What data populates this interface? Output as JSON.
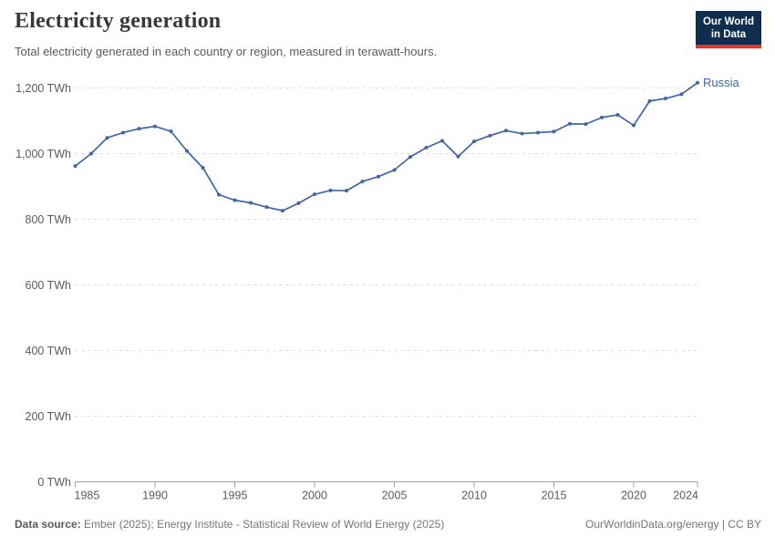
{
  "header": {
    "title": "Electricity generation",
    "subtitle": "Total electricity generated in each country or region, measured in terawatt-hours."
  },
  "logo": {
    "line1": "Our World",
    "line2": "in Data",
    "bg_color": "#0f2d4e",
    "accent_color": "#d93a32"
  },
  "footer": {
    "source_label": "Data source:",
    "source_text": " Ember (2025); Energy Institute - Statistical Review of World Energy (2025)",
    "right_text": "OurWorldinData.org/energy | CC BY"
  },
  "chart_data": {
    "type": "line",
    "title": "Electricity generation",
    "subtitle": "Total electricity generated in each country or region, measured in terawatt-hours.",
    "unit": "TWh",
    "grid": "horizontal-dashed",
    "legend": "end-of-line-label",
    "xlabel": "",
    "ylabel": "",
    "ylim": [
      0,
      1200
    ],
    "yticks": [
      0,
      200,
      400,
      600,
      800,
      1000,
      1200
    ],
    "xticks": [
      1985,
      1990,
      1995,
      2000,
      2005,
      2010,
      2015,
      2020,
      2024
    ],
    "x": [
      1985,
      1986,
      1987,
      1988,
      1989,
      1990,
      1991,
      1992,
      1993,
      1994,
      1995,
      1996,
      1997,
      1998,
      1999,
      2000,
      2001,
      2002,
      2003,
      2004,
      2005,
      2006,
      2007,
      2008,
      2009,
      2010,
      2011,
      2012,
      2013,
      2014,
      2015,
      2016,
      2017,
      2018,
      2019,
      2020,
      2021,
      2022,
      2023,
      2024
    ],
    "series": [
      {
        "name": "Russia",
        "color": "#4165a5",
        "values": [
          962,
          1000,
          1048,
          1064,
          1076,
          1083,
          1068,
          1008,
          957,
          875,
          858,
          850,
          837,
          826,
          849,
          876,
          888,
          887,
          915,
          930,
          950,
          990,
          1018,
          1039,
          991,
          1037,
          1055,
          1070,
          1061,
          1064,
          1067,
          1091,
          1090,
          1110,
          1118,
          1086,
          1160,
          1168,
          1181,
          1216
        ]
      }
    ],
    "axis_color": "#a0a0a0",
    "gridline_color": "#dcdcdc",
    "tick_label_color": "#5b5b5b"
  }
}
